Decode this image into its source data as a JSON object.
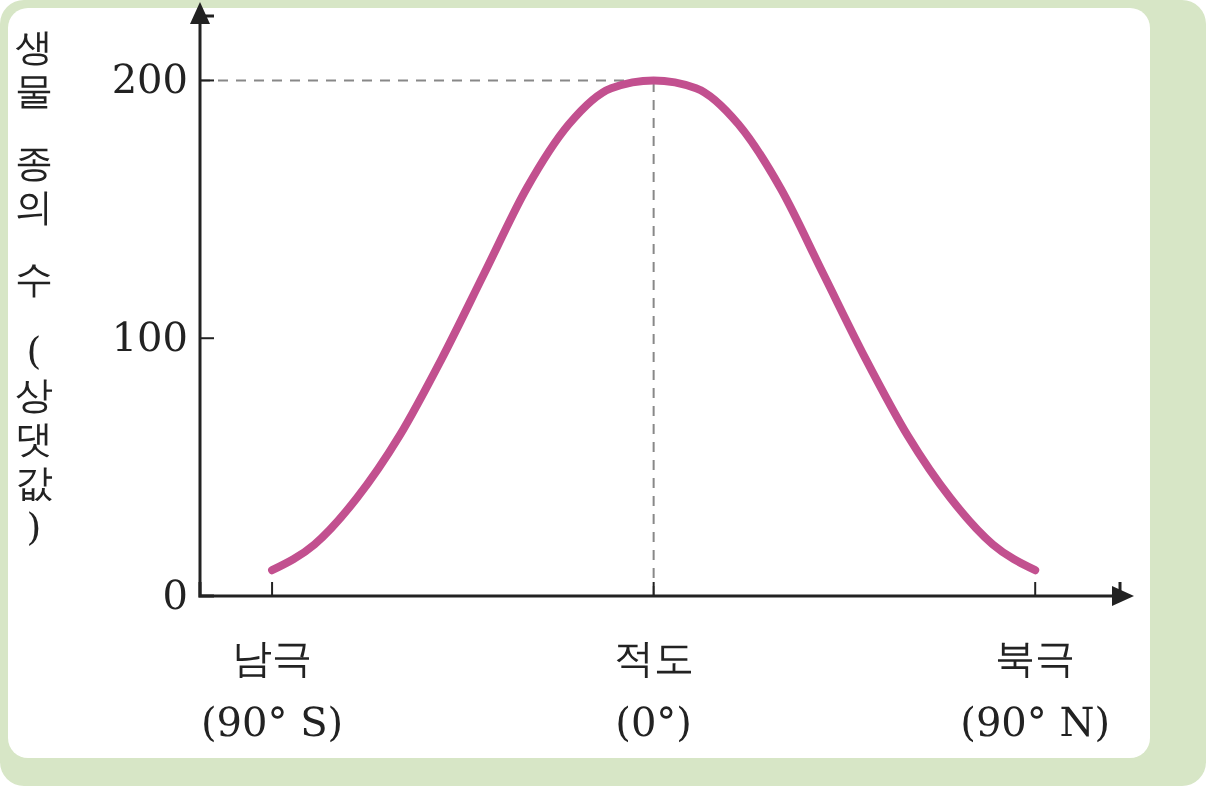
{
  "chart_data": {
    "type": "line",
    "ylabel": "생물 종의 수 (상댓값)",
    "x": [
      -90,
      -80,
      -70,
      -60,
      -50,
      -40,
      -30,
      -20,
      -10,
      0,
      10,
      20,
      30,
      40,
      50,
      60,
      70,
      80,
      90
    ],
    "series": [
      {
        "color": "#c2508f",
        "values": [
          10,
          20,
          38,
          62,
          92,
          125,
          158,
          183,
          197,
          200,
          197,
          183,
          158,
          125,
          92,
          62,
          38,
          20,
          10
        ]
      }
    ],
    "xlim": [
      -107,
      110
    ],
    "ylim": [
      0,
      225
    ],
    "xticks": [
      {
        "value": -90,
        "label": "남극\n(90° S)"
      },
      {
        "value": 0,
        "label": "적도\n(0°)"
      },
      {
        "value": 90,
        "label": "북극\n(90° N)"
      }
    ],
    "yticks": [
      0,
      100,
      200
    ],
    "ref_lines": [
      {
        "axis": "x",
        "value": 0,
        "line_style": "dashed",
        "color": "#888888"
      },
      {
        "axis": "y",
        "value": 200,
        "line_style": "dashed",
        "color": "#888888"
      }
    ],
    "marker": "none",
    "line_style": "solid",
    "grid": false
  }
}
